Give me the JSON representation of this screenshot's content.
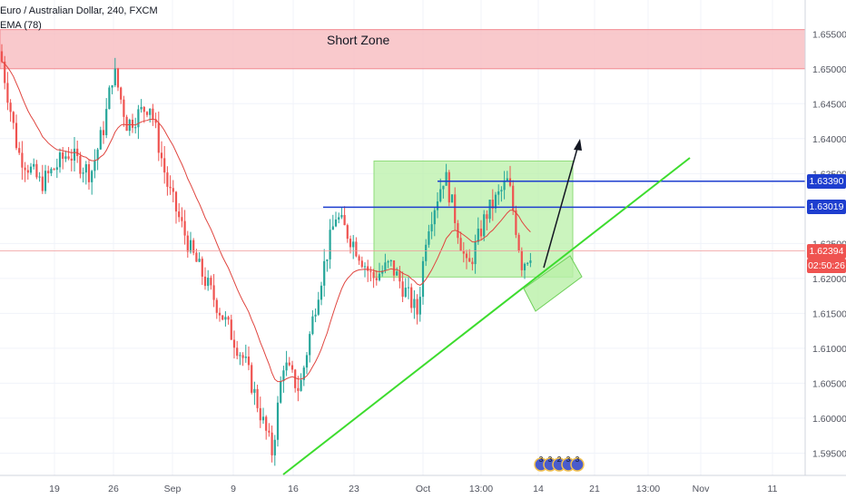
{
  "symbol": {
    "title": "Euro / Australian Dollar, 240, FXCM",
    "indicator": "EMA (78)"
  },
  "annotations": {
    "short_zone_label": "Short Zone"
  },
  "colors": {
    "up": "#26a69a",
    "down": "#ef5350",
    "ema": "#e0453f",
    "short_zone": "#f8bbbf",
    "green_box": "#b9f0a8",
    "blue_line": "#1e3ecf",
    "trend_line": "#3ddc2e",
    "current_price_tag": "#ef5350"
  },
  "price_axis": {
    "ticks": [
      "1.65500",
      "1.65000",
      "1.64500",
      "1.64000",
      "1.63500",
      "1.63000",
      "1.62500",
      "1.62000",
      "1.61500",
      "1.61000",
      "1.60500",
      "1.60000",
      "1.59500"
    ],
    "tags": {
      "upper_level": "1.63390",
      "lower_level": "1.63019",
      "current_price": "1.62394",
      "countdown": "02:50:26"
    }
  },
  "time_axis": {
    "ticks": [
      "19",
      "26",
      "Sep",
      "9",
      "16",
      "23",
      "Oct",
      "13:00",
      "14",
      "21",
      "13:00",
      "Nov",
      "11"
    ]
  },
  "event_markers": [
    "3",
    "3",
    "2",
    "3",
    "3"
  ],
  "chart_data": {
    "type": "candlestick",
    "title": "Euro / Australian Dollar, 240, FXCM",
    "ylim": [
      1.592,
      1.657
    ],
    "overlays": [
      "EMA (78)"
    ],
    "horizontal_levels": [
      1.6339,
      1.63019
    ],
    "current_price": 1.62394,
    "zones": [
      {
        "label": "Short Zone",
        "from": 1.65,
        "to": 1.6556
      }
    ],
    "waypoints": [
      {
        "x": 0,
        "y": 1.6525
      },
      {
        "x": 20,
        "y": 1.638
      },
      {
        "x": 45,
        "y": 1.6335
      },
      {
        "x": 75,
        "y": 1.638
      },
      {
        "x": 100,
        "y": 1.635
      },
      {
        "x": 115,
        "y": 1.642
      },
      {
        "x": 125,
        "y": 1.65
      },
      {
        "x": 140,
        "y": 1.642
      },
      {
        "x": 165,
        "y": 1.645
      },
      {
        "x": 185,
        "y": 1.633
      },
      {
        "x": 210,
        "y": 1.624
      },
      {
        "x": 240,
        "y": 1.616
      },
      {
        "x": 270,
        "y": 1.608
      },
      {
        "x": 300,
        "y": 1.595
      },
      {
        "x": 312,
        "y": 1.608
      },
      {
        "x": 330,
        "y": 1.604
      },
      {
        "x": 350,
        "y": 1.618
      },
      {
        "x": 370,
        "y": 1.629
      },
      {
        "x": 390,
        "y": 1.625
      },
      {
        "x": 410,
        "y": 1.62
      },
      {
        "x": 430,
        "y": 1.622
      },
      {
        "x": 460,
        "y": 1.615
      },
      {
        "x": 470,
        "y": 1.627
      },
      {
        "x": 490,
        "y": 1.635
      },
      {
        "x": 515,
        "y": 1.621
      },
      {
        "x": 535,
        "y": 1.629
      },
      {
        "x": 560,
        "y": 1.634
      },
      {
        "x": 575,
        "y": 1.622
      },
      {
        "x": 585,
        "y": 1.6239
      }
    ]
  }
}
